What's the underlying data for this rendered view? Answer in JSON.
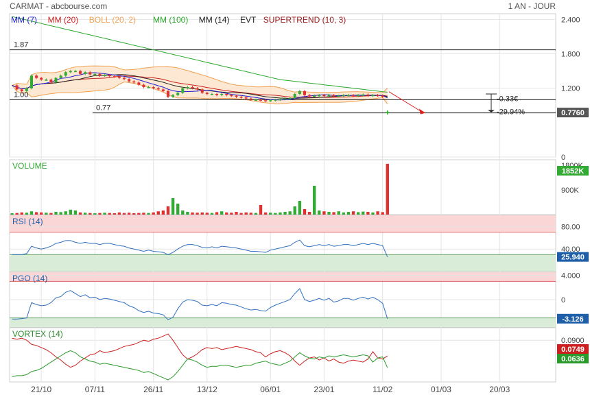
{
  "header": {
    "title": "CARMAT - abcbourse.com",
    "period": "1 AN - JOUR"
  },
  "legend": [
    {
      "label": "MM (7)",
      "color": "#1a1ad4"
    },
    {
      "label": "MM (20)",
      "color": "#cc1f1f"
    },
    {
      "label": "BOLL (20, 2)",
      "color": "#f0a050"
    },
    {
      "label": "MM (100)",
      "color": "#2aa82a"
    },
    {
      "label": "MM (14)",
      "color": "#222222"
    },
    {
      "label": "EVT",
      "color": "#222222"
    },
    {
      "label": "SUPERTREND (10, 3)",
      "color": "#9a1a1a"
    }
  ],
  "colors": {
    "up": "#33aa33",
    "down": "#e03030",
    "grid": "#e4e4e4",
    "overbought_zone": "#fbd6d6",
    "oversold_zone": "#d8ecd8",
    "price_badge": "#555555",
    "rsi_badge": "#1f5fa8",
    "pgo_badge": "#1f5fa8",
    "vortex_plus": "#cc1f1f",
    "vortex_minus": "#2a9a2a"
  },
  "price_panel": {
    "ylim": [
      0,
      2.5
    ],
    "y_ticks": [
      "2.400",
      "1.800",
      "1.200",
      "0"
    ],
    "y_tick_values": [
      2.4,
      1.8,
      1.2,
      0
    ],
    "last_price": "0.7760",
    "level_lines": [
      {
        "value": 1.87,
        "label": "1.87"
      },
      {
        "value": 1.0,
        "label": "1.00"
      },
      {
        "value": 0.77,
        "label": "0.77"
      }
    ],
    "annotation_change_abs": "-0.33€",
    "annotation_change_pct": "-29.94%",
    "close": [
      1.25,
      1.18,
      1.15,
      1.2,
      1.42,
      1.38,
      1.35,
      1.35,
      1.3,
      1.38,
      1.42,
      1.48,
      1.5,
      1.5,
      1.45,
      1.48,
      1.44,
      1.45,
      1.42,
      1.43,
      1.41,
      1.4,
      1.38,
      1.36,
      1.32,
      1.3,
      1.26,
      1.22,
      1.22,
      1.2,
      1.18,
      1.15,
      1.05,
      1.08,
      1.12,
      1.2,
      1.22,
      1.2,
      1.18,
      1.12,
      1.1,
      1.1,
      1.08,
      1.1,
      1.08,
      1.07,
      1.05,
      1.04,
      1.02,
      1.0,
      1.0,
      0.99,
      0.98,
      0.99,
      1.0,
      1.01,
      1.02,
      1.03,
      1.1,
      1.15,
      1.08,
      1.06,
      1.07,
      1.08,
      1.07,
      1.08,
      1.06,
      1.07,
      1.08,
      1.08,
      1.07,
      1.08,
      1.09,
      1.07,
      1.08,
      1.07,
      1.05,
      0.776
    ],
    "ma100": [
      2.45,
      2.43,
      2.41,
      2.39,
      2.37,
      2.35,
      2.33,
      2.31,
      2.29,
      2.27,
      2.25,
      2.23,
      2.21,
      2.19,
      2.17,
      2.15,
      2.13,
      2.11,
      2.09,
      2.07,
      2.05,
      2.03,
      2.01,
      1.99,
      1.97,
      1.95,
      1.93,
      1.91,
      1.89,
      1.87,
      1.85,
      1.83,
      1.81,
      1.79,
      1.77,
      1.75,
      1.73,
      1.71,
      1.69,
      1.67,
      1.65,
      1.63,
      1.61,
      1.59,
      1.57,
      1.55,
      1.53,
      1.51,
      1.49,
      1.47,
      1.45,
      1.43,
      1.41,
      1.39,
      1.37,
      1.35,
      1.34,
      1.33,
      1.32,
      1.31,
      1.3,
      1.29,
      1.28,
      1.27,
      1.26,
      1.25,
      1.24,
      1.23,
      1.22,
      1.21,
      1.2,
      1.19,
      1.18,
      1.17,
      1.16,
      1.15,
      1.14,
      1.13
    ],
    "volume_max": 2000,
    "volume": [
      50,
      60,
      80,
      70,
      120,
      90,
      80,
      70,
      60,
      100,
      90,
      120,
      180,
      150,
      80,
      70,
      60,
      50,
      60,
      70,
      60,
      50,
      80,
      60,
      70,
      50,
      60,
      70,
      60,
      80,
      120,
      150,
      300,
      600,
      400,
      150,
      100,
      80,
      70,
      80,
      70,
      60,
      90,
      120,
      80,
      70,
      100,
      60,
      80,
      70,
      60,
      350,
      80,
      70,
      60,
      80,
      100,
      120,
      300,
      500,
      200,
      100,
      1050,
      150,
      120,
      100,
      90,
      120,
      80,
      100,
      120,
      90,
      110,
      100,
      80,
      120,
      90,
      1852
    ]
  },
  "volume_panel": {
    "label": "VOLUME",
    "y_ticks": [
      "900K",
      "1800K"
    ],
    "y_tick_values": [
      900,
      1800
    ],
    "last_value": "1852K"
  },
  "rsi_panel": {
    "label": "RSI (14)",
    "ylim": [
      0,
      100
    ],
    "y_ticks": [
      "80.00",
      "40.00"
    ],
    "y_tick_values": [
      80,
      40
    ],
    "upper_band": 70,
    "lower_band": 30,
    "last_value": "25.940",
    "values": [
      30,
      30,
      30,
      32,
      45,
      42,
      40,
      42,
      45,
      50,
      52,
      55,
      55,
      52,
      50,
      52,
      50,
      50,
      48,
      50,
      50,
      48,
      46,
      45,
      42,
      40,
      38,
      36,
      38,
      36,
      35,
      34,
      30,
      34,
      40,
      45,
      48,
      48,
      46,
      43,
      42,
      44,
      42,
      45,
      44,
      43,
      42,
      40,
      38,
      36,
      36,
      35,
      34,
      38,
      40,
      42,
      44,
      46,
      52,
      56,
      46,
      44,
      46,
      48,
      46,
      48,
      45,
      46,
      48,
      48,
      46,
      48,
      50,
      48,
      50,
      48,
      46,
      26
    ]
  },
  "pgo_panel": {
    "label": "PGO (14)",
    "ylim": [
      -4.5,
      4.5
    ],
    "y_ticks": [
      "4.000",
      "0"
    ],
    "y_tick_values": [
      4,
      0
    ],
    "upper_band": 3,
    "lower_band": -3,
    "last_value": "-3.126",
    "values": [
      -3.2,
      -3.2,
      -3.1,
      -3,
      -0.5,
      -0.8,
      -1,
      -0.9,
      -0.5,
      0.3,
      0.5,
      1.2,
      1.5,
      1,
      0.5,
      0.8,
      0.3,
      0.4,
      0,
      0.2,
      0.1,
      -0.1,
      -0.3,
      -0.5,
      -1,
      -1.3,
      -1.8,
      -2.1,
      -1.9,
      -2.2,
      -2.3,
      -2.5,
      -3.3,
      -2.9,
      -1.5,
      -0.4,
      0,
      -0.1,
      -0.3,
      -0.9,
      -1,
      -0.8,
      -1,
      -0.5,
      -0.6,
      -0.8,
      -0.9,
      -1.2,
      -1.5,
      -1.7,
      -1.6,
      -1.8,
      -1.9,
      -1.3,
      -0.9,
      -0.6,
      -0.3,
      0,
      1,
      1.8,
      0,
      -0.3,
      -0.1,
      0.2,
      -0.1,
      0.2,
      -0.4,
      -0.2,
      0.2,
      0.2,
      -0.1,
      0.2,
      0.4,
      0.1,
      0.4,
      0,
      -0.6,
      -3.126
    ]
  },
  "vortex_panel": {
    "label": "VORTEX (14)",
    "ylim": [
      0.05,
      0.102
    ],
    "y_ticks": [
      "0.0900"
    ],
    "y_tick_values": [
      0.09
    ],
    "last_plus": "0.0749",
    "last_minus": "0.0636",
    "plus": [
      0.092,
      0.091,
      0.092,
      0.09,
      0.086,
      0.085,
      0.083,
      0.081,
      0.078,
      0.074,
      0.071,
      0.067,
      0.064,
      0.066,
      0.07,
      0.073,
      0.076,
      0.077,
      0.08,
      0.078,
      0.079,
      0.08,
      0.082,
      0.084,
      0.085,
      0.086,
      0.088,
      0.09,
      0.089,
      0.091,
      0.092,
      0.094,
      0.096,
      0.09,
      0.083,
      0.076,
      0.072,
      0.074,
      0.077,
      0.081,
      0.083,
      0.082,
      0.083,
      0.081,
      0.082,
      0.083,
      0.084,
      0.083,
      0.082,
      0.081,
      0.079,
      0.078,
      0.074,
      0.077,
      0.079,
      0.08,
      0.078,
      0.075,
      0.07,
      0.066,
      0.07,
      0.073,
      0.074,
      0.071,
      0.073,
      0.07,
      0.072,
      0.069,
      0.068,
      0.07,
      0.071,
      0.07,
      0.069,
      0.072,
      0.079,
      0.073,
      0.072,
      0.0749
    ],
    "minus": [
      0.055,
      0.056,
      0.056,
      0.057,
      0.06,
      0.061,
      0.063,
      0.066,
      0.069,
      0.072,
      0.075,
      0.078,
      0.08,
      0.078,
      0.074,
      0.072,
      0.07,
      0.069,
      0.067,
      0.068,
      0.067,
      0.066,
      0.065,
      0.064,
      0.063,
      0.062,
      0.061,
      0.059,
      0.06,
      0.058,
      0.056,
      0.054,
      0.052,
      0.055,
      0.06,
      0.066,
      0.072,
      0.071,
      0.069,
      0.066,
      0.064,
      0.065,
      0.065,
      0.066,
      0.066,
      0.065,
      0.064,
      0.065,
      0.066,
      0.066,
      0.068,
      0.069,
      0.07,
      0.068,
      0.067,
      0.066,
      0.068,
      0.07,
      0.074,
      0.078,
      0.075,
      0.073,
      0.072,
      0.074,
      0.073,
      0.075,
      0.074,
      0.075,
      0.076,
      0.075,
      0.074,
      0.075,
      0.076,
      0.075,
      0.069,
      0.073,
      0.074,
      0.0636
    ]
  },
  "x_axis": {
    "labels": [
      "21/10",
      "07/11",
      "26/11",
      "13/12",
      "06/01",
      "23/01",
      "11/02",
      "01/03",
      "20/03"
    ],
    "label_index": [
      6,
      17,
      29,
      40,
      53,
      64,
      76,
      88,
      100
    ],
    "total_slots": 112
  }
}
